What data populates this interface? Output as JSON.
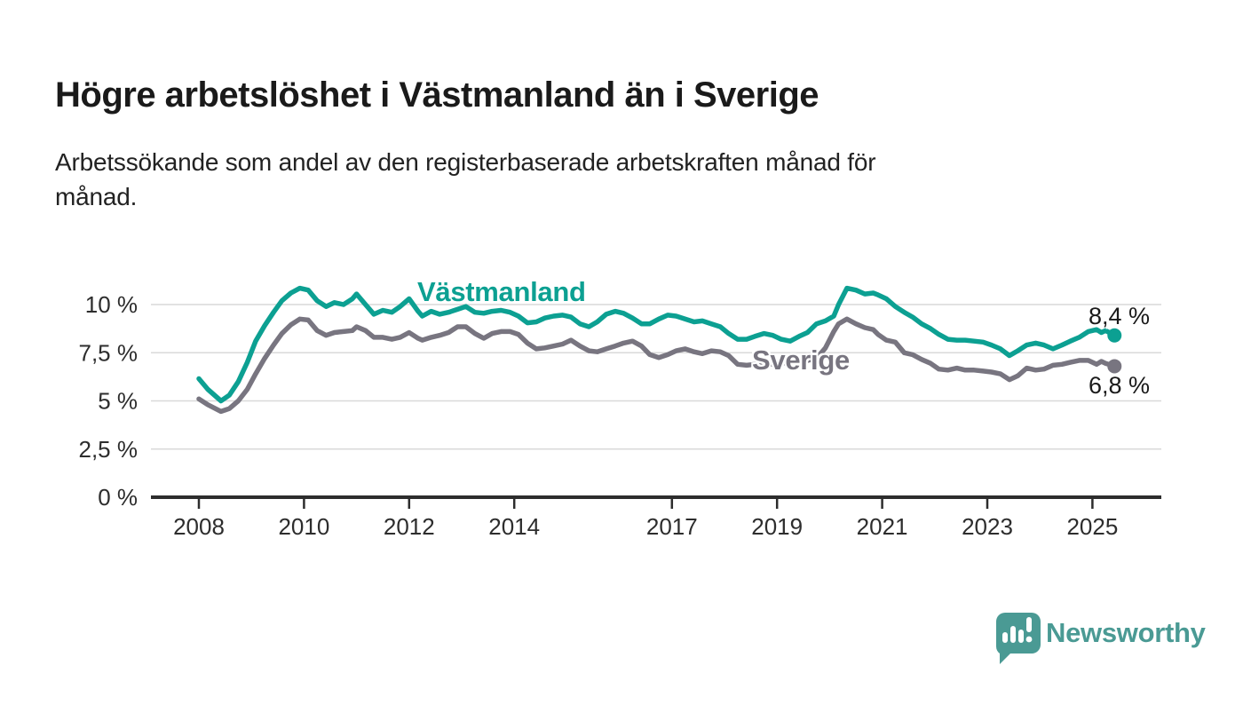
{
  "header": {
    "title": "Högre arbetslöshet i Västmanland än i Sverige",
    "subtitle_lines": [
      "Arbetssökande som andel av den registerbaserade arbetskraften månad för",
      "månad."
    ]
  },
  "colors": {
    "vastmanland": "#0ca092",
    "sverige": "#787580",
    "grid": "#d9d9d9",
    "axis": "#2d2d2d",
    "text": "#1a1a1a",
    "brand": "#4a9a94"
  },
  "chart_data": {
    "type": "line",
    "title": "Högre arbetslöshet i Västmanland än i Sverige",
    "subtitle": "Arbetssökande som andel av den registerbaserade arbetskraften månad för månad.",
    "unit": "%",
    "grid": "horizontal",
    "legend_position": "inline-labels",
    "y_axis": {
      "ticks": [
        {
          "label": "0 %",
          "value": 0
        },
        {
          "label": "2,5 %",
          "value": 2.5
        },
        {
          "label": "5 %",
          "value": 5
        },
        {
          "label": "7,5 %",
          "value": 7.5
        },
        {
          "label": "10 %",
          "value": 10
        }
      ],
      "range": [
        0,
        11.3
      ]
    },
    "x_axis": {
      "ticks": [
        2008,
        2010,
        2012,
        2014,
        2017,
        2019,
        2021,
        2023,
        2025
      ],
      "range": [
        2007.1,
        2026.4
      ]
    },
    "x": [
      2008.0,
      2008.17,
      2008.42,
      2008.58,
      2008.75,
      2008.92,
      2009.08,
      2009.25,
      2009.42,
      2009.58,
      2009.75,
      2009.92,
      2010.08,
      2010.25,
      2010.42,
      2010.58,
      2010.75,
      2010.92,
      2011.0,
      2011.17,
      2011.33,
      2011.5,
      2011.67,
      2011.83,
      2012.0,
      2012.17,
      2012.25,
      2012.42,
      2012.58,
      2012.75,
      2012.92,
      2013.08,
      2013.25,
      2013.42,
      2013.58,
      2013.75,
      2013.92,
      2014.08,
      2014.25,
      2014.42,
      2014.58,
      2014.75,
      2014.92,
      2015.08,
      2015.25,
      2015.42,
      2015.58,
      2015.75,
      2015.92,
      2016.08,
      2016.25,
      2016.42,
      2016.58,
      2016.75,
      2016.92,
      2017.08,
      2017.25,
      2017.42,
      2017.58,
      2017.75,
      2017.92,
      2018.08,
      2018.25,
      2018.42,
      2018.58,
      2018.75,
      2018.92,
      2019.08,
      2019.25,
      2019.42,
      2019.58,
      2019.75,
      2019.92,
      2020.08,
      2020.17,
      2020.33,
      2020.5,
      2020.67,
      2020.83,
      2020.92,
      2021.08,
      2021.25,
      2021.42,
      2021.58,
      2021.75,
      2021.92,
      2022.08,
      2022.25,
      2022.42,
      2022.58,
      2022.75,
      2022.92,
      2023.08,
      2023.25,
      2023.42,
      2023.58,
      2023.75,
      2023.92,
      2024.08,
      2024.25,
      2024.42,
      2024.58,
      2024.75,
      2024.92,
      2025.08,
      2025.17,
      2025.25,
      2025.42
    ],
    "series": [
      {
        "name": "Västmanland",
        "color": "#0ca092",
        "end_label": "8,4 %",
        "end_value": 8.4,
        "values": [
          6.15,
          5.6,
          5.0,
          5.3,
          6.0,
          7.0,
          8.1,
          8.9,
          9.6,
          10.2,
          10.6,
          10.85,
          10.75,
          10.2,
          9.9,
          10.1,
          10.0,
          10.3,
          10.55,
          10.0,
          9.5,
          9.7,
          9.6,
          9.9,
          10.3,
          9.65,
          9.4,
          9.65,
          9.5,
          9.6,
          9.75,
          9.9,
          9.6,
          9.55,
          9.65,
          9.7,
          9.6,
          9.4,
          9.05,
          9.1,
          9.3,
          9.4,
          9.45,
          9.35,
          9.0,
          8.85,
          9.1,
          9.5,
          9.65,
          9.55,
          9.3,
          9.0,
          9.0,
          9.25,
          9.45,
          9.4,
          9.25,
          9.1,
          9.15,
          9.0,
          8.85,
          8.5,
          8.2,
          8.2,
          8.35,
          8.5,
          8.4,
          8.2,
          8.1,
          8.35,
          8.55,
          9.0,
          9.15,
          9.4,
          10.0,
          10.85,
          10.75,
          10.55,
          10.6,
          10.5,
          10.3,
          9.9,
          9.6,
          9.35,
          9.0,
          8.75,
          8.45,
          8.2,
          8.15,
          8.15,
          8.1,
          8.05,
          7.9,
          7.7,
          7.35,
          7.6,
          7.9,
          8.0,
          7.9,
          7.7,
          7.9,
          8.1,
          8.3,
          8.6,
          8.7,
          8.55,
          8.65,
          8.4
        ]
      },
      {
        "name": "Sverige",
        "color": "#787580",
        "end_label": "6,8 %",
        "end_value": 6.8,
        "values": [
          5.1,
          4.8,
          4.45,
          4.6,
          5.0,
          5.6,
          6.4,
          7.2,
          7.9,
          8.5,
          8.95,
          9.25,
          9.2,
          8.65,
          8.4,
          8.55,
          8.6,
          8.65,
          8.85,
          8.65,
          8.3,
          8.3,
          8.2,
          8.3,
          8.55,
          8.25,
          8.15,
          8.3,
          8.4,
          8.55,
          8.85,
          8.85,
          8.5,
          8.25,
          8.5,
          8.6,
          8.6,
          8.45,
          8.0,
          7.7,
          7.75,
          7.85,
          7.95,
          8.15,
          7.85,
          7.6,
          7.55,
          7.7,
          7.85,
          8.0,
          8.1,
          7.85,
          7.4,
          7.25,
          7.4,
          7.6,
          7.7,
          7.55,
          7.45,
          7.6,
          7.55,
          7.35,
          6.9,
          6.85,
          6.9,
          6.9,
          6.9,
          6.95,
          7.0,
          7.05,
          7.1,
          7.2,
          7.75,
          8.6,
          9.0,
          9.25,
          9.0,
          8.8,
          8.7,
          8.45,
          8.15,
          8.05,
          7.5,
          7.4,
          7.15,
          6.95,
          6.65,
          6.6,
          6.7,
          6.6,
          6.6,
          6.55,
          6.5,
          6.4,
          6.1,
          6.3,
          6.7,
          6.6,
          6.65,
          6.85,
          6.9,
          7.0,
          7.1,
          7.1,
          6.9,
          7.05,
          6.95,
          6.8
        ]
      }
    ]
  },
  "footer": {
    "brand": "Newsworthy",
    "logo_icon": "speech-bubble-bar-chart-icon"
  }
}
